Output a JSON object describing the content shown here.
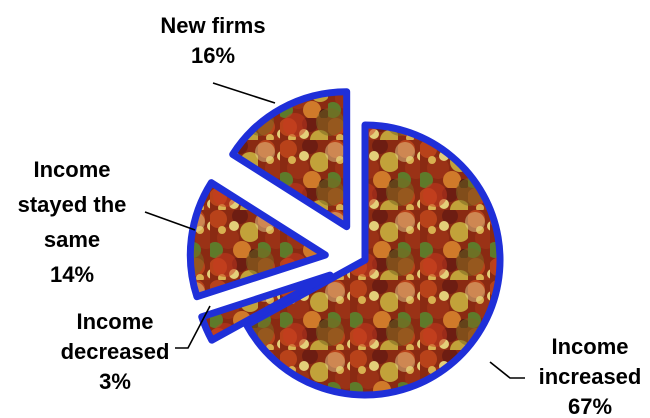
{
  "chart_data": {
    "type": "pie",
    "exploded": true,
    "slices": [
      {
        "label_lines": [
          "Income",
          "increased"
        ],
        "value": 67,
        "value_label": "67%"
      },
      {
        "label_lines": [
          "Income",
          "decreased"
        ],
        "value": 3,
        "value_label": "3%"
      },
      {
        "label_lines": [
          "Income",
          "stayed the",
          "same"
        ],
        "value": 14,
        "value_label": "14%"
      },
      {
        "label_lines": [
          "New firms"
        ],
        "value": 16,
        "value_label": "16%"
      }
    ],
    "border_color": "#1f2fd8",
    "fill_texture": "autumn-foliage"
  }
}
